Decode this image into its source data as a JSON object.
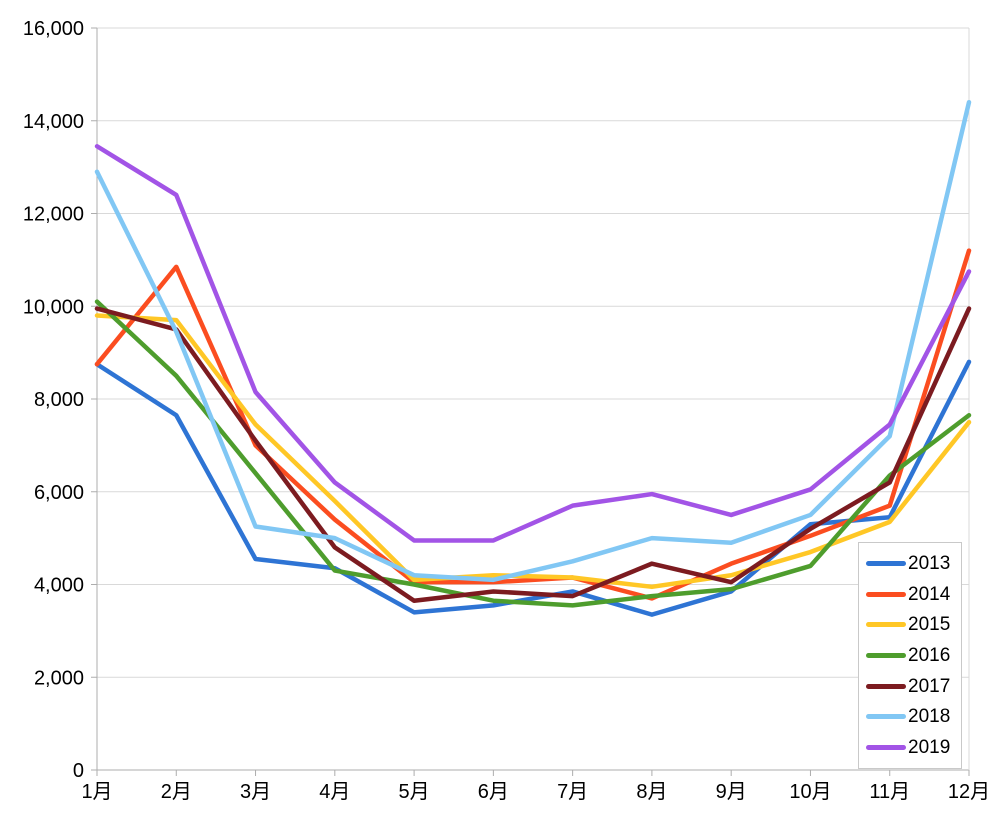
{
  "chart_data": {
    "type": "line",
    "title": "",
    "xlabel": "",
    "ylabel": "",
    "grid": true,
    "legend_position": "bottom-right",
    "x_categories": [
      "1月",
      "2月",
      "3月",
      "4月",
      "5月",
      "6月",
      "7月",
      "8月",
      "9月",
      "10月",
      "11月",
      "12月"
    ],
    "y_axis": {
      "min": 0,
      "max": 16000,
      "step": 2000,
      "tick_labels": [
        "0",
        "2,000",
        "4,000",
        "6,000",
        "8,000",
        "10,000",
        "12,000",
        "14,000",
        "16,000"
      ]
    },
    "axis_colors": {
      "grid": "#d9d9d9",
      "axis": "#adadad",
      "text": "#000000"
    },
    "series": [
      {
        "name": "2013",
        "color": "#2e74d4",
        "values": [
          8750,
          7650,
          4550,
          4350,
          3400,
          3550,
          3850,
          3350,
          3850,
          5300,
          5450,
          8800
        ]
      },
      {
        "name": "2014",
        "color": "#fb4d20",
        "values": [
          8750,
          10850,
          7000,
          5400,
          4050,
          4050,
          4150,
          3700,
          4450,
          5050,
          5700,
          11200
        ]
      },
      {
        "name": "2015",
        "color": "#ffc726",
        "values": [
          9800,
          9700,
          7450,
          5800,
          4100,
          4200,
          4150,
          3950,
          4200,
          4700,
          5350,
          7500
        ]
      },
      {
        "name": "2016",
        "color": "#4e9d2d",
        "values": [
          10100,
          8500,
          6400,
          4300,
          4000,
          3650,
          3550,
          3750,
          3900,
          4400,
          6350,
          7650
        ]
      },
      {
        "name": "2017",
        "color": "#7c1b20",
        "values": [
          9950,
          9500,
          7100,
          4800,
          3650,
          3850,
          3750,
          4450,
          4050,
          5200,
          6200,
          9950
        ]
      },
      {
        "name": "2018",
        "color": "#81c7f4",
        "values": [
          12900,
          9450,
          5250,
          5000,
          4200,
          4100,
          4500,
          5000,
          4900,
          5500,
          7200,
          14400
        ]
      },
      {
        "name": "2019",
        "color": "#a254e6",
        "values": [
          13450,
          12400,
          8150,
          6200,
          4950,
          4950,
          5700,
          5950,
          5500,
          6050,
          7450,
          10750
        ]
      }
    ]
  }
}
